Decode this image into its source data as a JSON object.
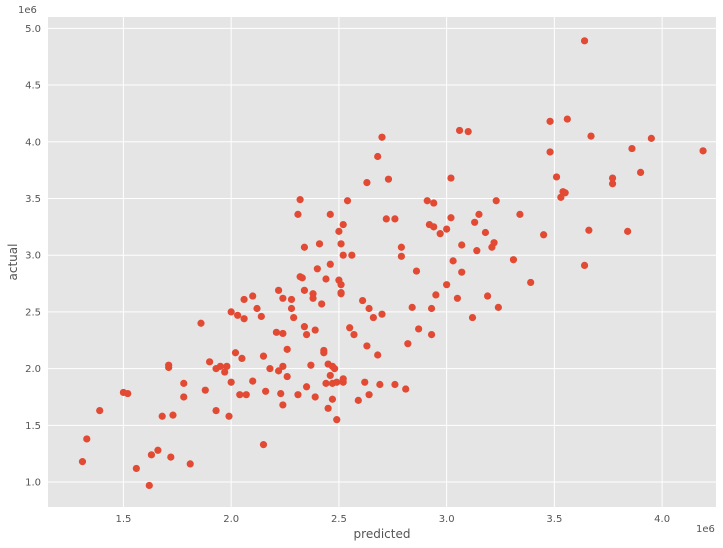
{
  "chart_data": {
    "type": "scatter",
    "title": "",
    "xlabel": "predicted",
    "ylabel": "actual",
    "x_offset_label": "1e6",
    "y_offset_label": "1e6",
    "xlim": [
      1.15,
      4.25
    ],
    "ylim": [
      0.78,
      5.1
    ],
    "x_ticks": [
      1.5,
      2.0,
      2.5,
      3.0,
      3.5,
      4.0
    ],
    "x_tick_labels": [
      "1.5",
      "2.0",
      "2.5",
      "3.0",
      "3.5",
      "4.0"
    ],
    "y_ticks": [
      1.0,
      1.5,
      2.0,
      2.5,
      3.0,
      3.5,
      4.0,
      4.5,
      5.0
    ],
    "y_tick_labels": [
      "1.0",
      "1.5",
      "2.0",
      "2.5",
      "3.0",
      "3.5",
      "4.0",
      "4.5",
      "5.0"
    ],
    "grid": true,
    "point_color": "#E24A33",
    "background_color": "#E5E5E5",
    "points": [
      [
        1.31,
        1.18
      ],
      [
        1.33,
        1.38
      ],
      [
        1.39,
        1.63
      ],
      [
        1.5,
        1.79
      ],
      [
        1.52,
        1.78
      ],
      [
        1.56,
        1.12
      ],
      [
        1.62,
        0.97
      ],
      [
        1.63,
        1.24
      ],
      [
        1.66,
        1.28
      ],
      [
        1.68,
        1.58
      ],
      [
        1.71,
        2.03
      ],
      [
        1.71,
        2.01
      ],
      [
        1.72,
        1.22
      ],
      [
        1.73,
        1.59
      ],
      [
        1.78,
        1.87
      ],
      [
        1.78,
        1.75
      ],
      [
        1.81,
        1.16
      ],
      [
        1.86,
        2.4
      ],
      [
        1.88,
        1.81
      ],
      [
        1.9,
        2.06
      ],
      [
        1.93,
        2.0
      ],
      [
        1.93,
        1.63
      ],
      [
        1.95,
        2.02
      ],
      [
        1.97,
        1.97
      ],
      [
        1.98,
        2.02
      ],
      [
        1.99,
        1.58
      ],
      [
        2.0,
        1.88
      ],
      [
        2.0,
        2.5
      ],
      [
        2.02,
        2.14
      ],
      [
        2.03,
        2.47
      ],
      [
        2.04,
        1.77
      ],
      [
        2.05,
        2.09
      ],
      [
        2.06,
        2.44
      ],
      [
        2.07,
        1.77
      ],
      [
        2.06,
        2.61
      ],
      [
        2.1,
        2.64
      ],
      [
        2.1,
        1.89
      ],
      [
        2.12,
        2.53
      ],
      [
        2.14,
        2.46
      ],
      [
        2.15,
        2.11
      ],
      [
        2.15,
        1.33
      ],
      [
        2.16,
        1.8
      ],
      [
        2.18,
        2.0
      ],
      [
        2.21,
        2.32
      ],
      [
        2.22,
        1.98
      ],
      [
        2.22,
        2.69
      ],
      [
        2.23,
        1.78
      ],
      [
        2.24,
        2.62
      ],
      [
        2.24,
        2.31
      ],
      [
        2.24,
        1.68
      ],
      [
        2.24,
        2.02
      ],
      [
        2.26,
        1.93
      ],
      [
        2.26,
        2.17
      ],
      [
        2.28,
        2.61
      ],
      [
        2.28,
        2.53
      ],
      [
        2.29,
        2.45
      ],
      [
        2.31,
        1.77
      ],
      [
        2.31,
        3.36
      ],
      [
        2.32,
        3.49
      ],
      [
        2.32,
        2.81
      ],
      [
        2.33,
        2.8
      ],
      [
        2.34,
        3.07
      ],
      [
        2.34,
        2.69
      ],
      [
        2.34,
        2.37
      ],
      [
        2.35,
        1.84
      ],
      [
        2.35,
        2.3
      ],
      [
        2.37,
        2.03
      ],
      [
        2.38,
        2.66
      ],
      [
        2.38,
        2.62
      ],
      [
        2.39,
        1.75
      ],
      [
        2.39,
        2.34
      ],
      [
        2.4,
        2.88
      ],
      [
        2.41,
        3.1
      ],
      [
        2.42,
        2.57
      ],
      [
        2.43,
        2.16
      ],
      [
        2.43,
        2.14
      ],
      [
        2.44,
        1.87
      ],
      [
        2.44,
        2.79
      ],
      [
        2.45,
        1.65
      ],
      [
        2.45,
        2.04
      ],
      [
        2.46,
        3.36
      ],
      [
        2.46,
        2.92
      ],
      [
        2.46,
        1.94
      ],
      [
        2.47,
        1.73
      ],
      [
        2.47,
        1.87
      ],
      [
        2.47,
        2.02
      ],
      [
        2.48,
        2.0
      ],
      [
        2.49,
        1.55
      ],
      [
        2.49,
        1.88
      ],
      [
        2.5,
        3.21
      ],
      [
        2.5,
        2.78
      ],
      [
        2.51,
        2.67
      ],
      [
        2.51,
        2.66
      ],
      [
        2.51,
        3.1
      ],
      [
        2.51,
        2.74
      ],
      [
        2.52,
        3.27
      ],
      [
        2.52,
        3.0
      ],
      [
        2.52,
        1.91
      ],
      [
        2.52,
        1.88
      ],
      [
        2.54,
        3.48
      ],
      [
        2.55,
        2.36
      ],
      [
        2.56,
        3.0
      ],
      [
        2.57,
        2.3
      ],
      [
        2.59,
        1.72
      ],
      [
        2.61,
        2.6
      ],
      [
        2.62,
        1.88
      ],
      [
        2.63,
        3.64
      ],
      [
        2.63,
        2.2
      ],
      [
        2.64,
        2.53
      ],
      [
        2.64,
        1.77
      ],
      [
        2.66,
        2.45
      ],
      [
        2.68,
        3.87
      ],
      [
        2.68,
        2.12
      ],
      [
        2.69,
        1.86
      ],
      [
        2.7,
        4.04
      ],
      [
        2.7,
        2.48
      ],
      [
        2.72,
        3.32
      ],
      [
        2.73,
        3.67
      ],
      [
        2.76,
        3.32
      ],
      [
        2.76,
        1.86
      ],
      [
        2.79,
        3.07
      ],
      [
        2.79,
        2.99
      ],
      [
        2.81,
        1.82
      ],
      [
        2.82,
        2.22
      ],
      [
        2.84,
        2.54
      ],
      [
        2.86,
        2.86
      ],
      [
        2.87,
        2.35
      ],
      [
        2.91,
        3.48
      ],
      [
        2.92,
        3.27
      ],
      [
        2.93,
        2.3
      ],
      [
        2.93,
        2.53
      ],
      [
        2.94,
        3.46
      ],
      [
        2.94,
        3.25
      ],
      [
        2.95,
        2.65
      ],
      [
        2.97,
        3.19
      ],
      [
        3.0,
        3.23
      ],
      [
        3.0,
        2.74
      ],
      [
        3.02,
        3.33
      ],
      [
        3.02,
        3.68
      ],
      [
        3.03,
        2.95
      ],
      [
        3.05,
        2.62
      ],
      [
        3.06,
        4.1
      ],
      [
        3.07,
        2.85
      ],
      [
        3.07,
        3.09
      ],
      [
        3.1,
        4.09
      ],
      [
        3.12,
        2.45
      ],
      [
        3.13,
        3.29
      ],
      [
        3.14,
        3.04
      ],
      [
        3.15,
        3.36
      ],
      [
        3.18,
        3.2
      ],
      [
        3.19,
        2.64
      ],
      [
        3.21,
        3.07
      ],
      [
        3.22,
        3.11
      ],
      [
        3.23,
        3.48
      ],
      [
        3.24,
        2.54
      ],
      [
        3.31,
        2.96
      ],
      [
        3.34,
        3.36
      ],
      [
        3.39,
        2.76
      ],
      [
        3.45,
        3.18
      ],
      [
        3.48,
        4.18
      ],
      [
        3.48,
        3.91
      ],
      [
        3.51,
        3.69
      ],
      [
        3.53,
        3.51
      ],
      [
        3.54,
        3.56
      ],
      [
        3.55,
        3.55
      ],
      [
        3.56,
        4.2
      ],
      [
        3.64,
        4.89
      ],
      [
        3.64,
        2.91
      ],
      [
        3.66,
        3.22
      ],
      [
        3.67,
        4.05
      ],
      [
        3.77,
        3.68
      ],
      [
        3.77,
        3.63
      ],
      [
        3.84,
        3.21
      ],
      [
        3.86,
        3.94
      ],
      [
        3.9,
        3.73
      ],
      [
        3.95,
        4.03
      ],
      [
        4.19,
        3.92
      ]
    ]
  }
}
